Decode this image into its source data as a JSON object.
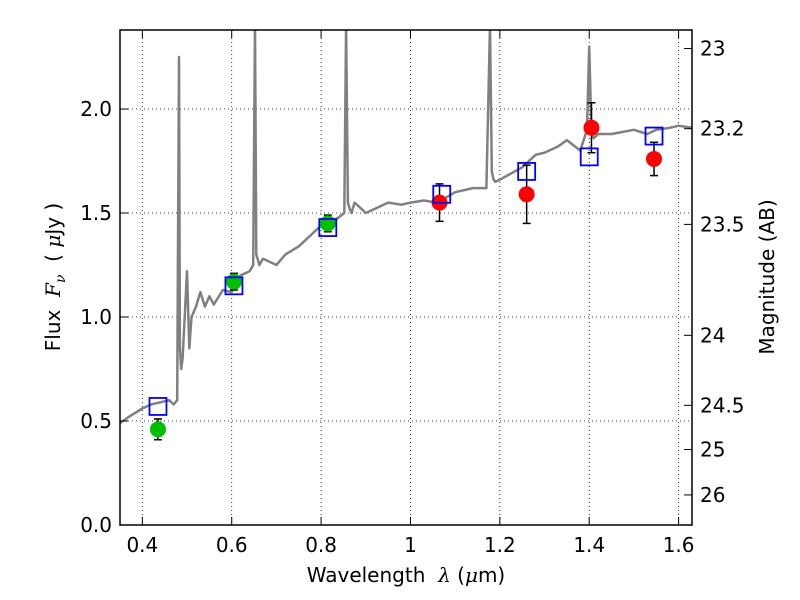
{
  "chart_data": {
    "type": "scatter",
    "xlabel_parts": {
      "prefix": "Wavelength  ",
      "symbol": "λ",
      "open": " (",
      "mu": "μ",
      "unit": "m)"
    },
    "ylabel_parts": {
      "prefix": "Flux  ",
      "symbol": "F",
      "sub": "ν",
      "open": "  ( ",
      "mu": "μ",
      "unit": "Jy )"
    },
    "y2label": "Magnitude (AB)",
    "xlim": [
      0.35,
      1.63
    ],
    "ylim": [
      0.0,
      2.38
    ],
    "x_ticks": [
      {
        "v": 0.4,
        "label": "0.4"
      },
      {
        "v": 0.6,
        "label": "0.6"
      },
      {
        "v": 0.8,
        "label": "0.8"
      },
      {
        "v": 1.0,
        "label": "1"
      },
      {
        "v": 1.2,
        "label": "1.2"
      },
      {
        "v": 1.4,
        "label": "1.4"
      },
      {
        "v": 1.6,
        "label": "1.6"
      }
    ],
    "y_ticks": [
      {
        "v": 0.0,
        "label": "0.0"
      },
      {
        "v": 0.5,
        "label": "0.5"
      },
      {
        "v": 1.0,
        "label": "1.0"
      },
      {
        "v": 1.5,
        "label": "1.5"
      },
      {
        "v": 2.0,
        "label": "2.0"
      }
    ],
    "y2_ticks": [
      {
        "mag": 23.0,
        "label": "23"
      },
      {
        "mag": 23.2,
        "label": "23.2"
      },
      {
        "mag": 23.5,
        "label": "23.5"
      },
      {
        "mag": 24.0,
        "label": "24"
      },
      {
        "mag": 24.5,
        "label": "24.5"
      },
      {
        "mag": 25.0,
        "label": "25"
      },
      {
        "mag": 26.0,
        "label": "26"
      }
    ],
    "grid": true,
    "colors": {
      "template": "#808080",
      "observed_optical": "#00bf00",
      "observed_nir": "#ff0000",
      "model": "#0000ff",
      "errorbar": "#000000"
    },
    "series": [
      {
        "name": "template_spectrum",
        "style": "line",
        "x": [
          0.35,
          0.37,
          0.4,
          0.42,
          0.44,
          0.46,
          0.47,
          0.478,
          0.482,
          0.484,
          0.487,
          0.49,
          0.5,
          0.505,
          0.51,
          0.52,
          0.53,
          0.54,
          0.55,
          0.56,
          0.58,
          0.6,
          0.62,
          0.64,
          0.648,
          0.652,
          0.655,
          0.658,
          0.662,
          0.67,
          0.7,
          0.72,
          0.75,
          0.78,
          0.8,
          0.82,
          0.84,
          0.852,
          0.856,
          0.86,
          0.864,
          0.868,
          0.875,
          0.9,
          0.92,
          0.95,
          0.98,
          1.0,
          1.03,
          1.06,
          1.1,
          1.14,
          1.17,
          1.178,
          1.182,
          1.186,
          1.19,
          1.2,
          1.25,
          1.28,
          1.3,
          1.33,
          1.35,
          1.38,
          1.395,
          1.4,
          1.405,
          1.41,
          1.42,
          1.45,
          1.5,
          1.53,
          1.55,
          1.58,
          1.6,
          1.63
        ],
        "y": [
          0.49,
          0.52,
          0.56,
          0.58,
          0.59,
          0.6,
          0.58,
          0.6,
          2.25,
          0.85,
          0.75,
          0.8,
          1.22,
          0.85,
          1.0,
          1.05,
          1.12,
          1.05,
          1.1,
          1.06,
          1.13,
          1.12,
          1.2,
          1.22,
          1.25,
          2.4,
          1.3,
          1.28,
          1.25,
          1.28,
          1.25,
          1.3,
          1.34,
          1.4,
          1.44,
          1.45,
          1.48,
          1.5,
          2.4,
          1.55,
          1.52,
          1.5,
          1.55,
          1.5,
          1.52,
          1.55,
          1.54,
          1.55,
          1.56,
          1.55,
          1.6,
          1.62,
          1.62,
          2.4,
          1.7,
          1.66,
          1.65,
          1.66,
          1.72,
          1.78,
          1.79,
          1.82,
          1.85,
          1.8,
          1.9,
          2.3,
          1.88,
          1.86,
          1.88,
          1.88,
          1.9,
          1.88,
          1.9,
          1.91,
          1.92,
          1.91
        ]
      },
      {
        "name": "observed_optical",
        "style": "points",
        "x": [
          0.435,
          0.605,
          0.815
        ],
        "y": [
          0.46,
          1.17,
          1.45
        ],
        "yerr": [
          0.05,
          0.04,
          0.04
        ]
      },
      {
        "name": "observed_nir",
        "style": "points",
        "x": [
          1.065,
          1.26,
          1.405,
          1.545
        ],
        "y": [
          1.55,
          1.59,
          1.91,
          1.76
        ],
        "yerr": [
          0.09,
          0.14,
          0.12,
          0.08
        ]
      },
      {
        "name": "model_photometry",
        "style": "open_squares",
        "x": [
          0.435,
          0.605,
          0.815,
          1.07,
          1.26,
          1.4,
          1.545
        ],
        "y": [
          0.57,
          1.15,
          1.43,
          1.59,
          1.7,
          1.77,
          1.87
        ]
      }
    ]
  }
}
